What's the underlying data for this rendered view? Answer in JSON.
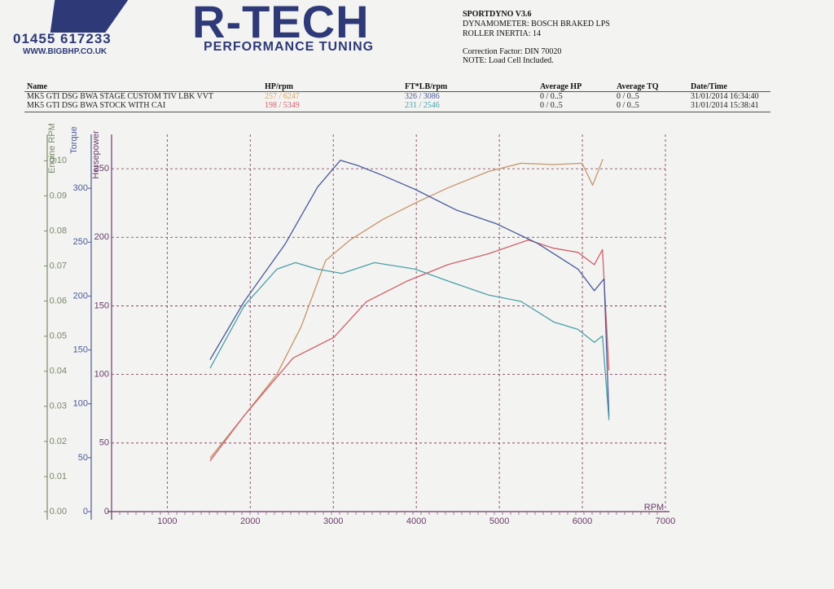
{
  "header": {
    "phone": "01455 617233",
    "website": "WWW.BIGBHP.CO.UK",
    "brand": "R-TECH",
    "tagline": "PERFORMANCE TUNING"
  },
  "info": [
    "SPORTDYNO V3.6",
    "DYNAMOMETER: BOSCH BRAKED LPS",
    "ROLLER INERTIA: 14",
    "Correction Factor: DIN 70020",
    "NOTE: Load Cell Included."
  ],
  "table": {
    "columns": [
      "Name",
      "HP/rpm",
      "FT*LB/rpm",
      "Average HP",
      "Average TQ",
      "Date/Time"
    ],
    "rows": [
      [
        "MK5 GTI DSG BWA STAGE CUSTOM TIV LBK VVT",
        "257 / 6247",
        "326 / 3086",
        "0 / 0..5",
        "0 / 0..5",
        "31/01/2014 16:34:40"
      ],
      [
        "MK5 GTI DSG BWA STOCK WITH CAI",
        "198 / 5349",
        "231 / 2546",
        "0 / 0..5",
        "0 / 0..5",
        "31/01/2014 15:38:41"
      ]
    ]
  },
  "chart_data": {
    "type": "line",
    "xlabel": "RPM",
    "ylabel": "Horsepower",
    "y2label": "Torque",
    "y3label": "Engine RPM",
    "xlim": [
      330,
      7000
    ],
    "xticks": [
      1000,
      2000,
      3000,
      4000,
      5000,
      6000,
      7000
    ],
    "ylim": [
      0,
      275
    ],
    "yticks": [
      0,
      50,
      100,
      150,
      200,
      250
    ],
    "y2lim": [
      0,
      350
    ],
    "y2ticks": [
      0,
      50,
      100,
      150,
      200,
      250,
      300
    ],
    "y3lim": [
      0,
      0.1075
    ],
    "y3ticks": [
      {
        "value": 0,
        "label": "0.00"
      },
      {
        "value": 0.01,
        "label": "0.01"
      },
      {
        "value": 0.02,
        "label": "0.02"
      },
      {
        "value": 0.03,
        "label": "0.03"
      },
      {
        "value": 0.04,
        "label": "0.04"
      },
      {
        "value": 0.05,
        "label": "0.05"
      },
      {
        "value": 0.06,
        "label": "0.06"
      },
      {
        "value": 0.07,
        "label": "0.07"
      },
      {
        "value": 0.08,
        "label": "0.08"
      },
      {
        "value": 0.09,
        "label": "0.09"
      },
      {
        "value": 0.1,
        "label": "0.10"
      }
    ],
    "grid": true,
    "series": [
      {
        "color": "#c8956a",
        "axis": "y",
        "x": [
          1516,
          1928,
          2320,
          2614,
          2908,
          3202,
          3595,
          3987,
          4379,
          4869,
          5261,
          5654,
          5997,
          6124,
          6247
        ],
        "values": [
          39,
          70,
          100,
          135,
          183,
          198,
          213,
          225,
          236,
          248,
          254,
          253,
          254,
          238,
          257
        ]
      },
      {
        "color": "#d0606a",
        "axis": "y",
        "x": [
          1516,
          1928,
          2516,
          3006,
          3398,
          3888,
          4379,
          4869,
          5349,
          5654,
          5948,
          6144,
          6242,
          6320
        ],
        "values": [
          37,
          70,
          112,
          127,
          153,
          168,
          180,
          188,
          198,
          192,
          189,
          180,
          191,
          103
        ]
      },
      {
        "color": "#4a5a9a",
        "axis": "y2",
        "x": [
          1516,
          1928,
          2418,
          2810,
          3086,
          3300,
          3595,
          3987,
          4477,
          4967,
          5457,
          5948,
          6144,
          6261,
          6320
        ],
        "values": [
          141,
          195,
          248,
          301,
          326,
          321,
          312,
          299,
          280,
          267,
          249,
          225,
          205,
          216,
          88
        ]
      },
      {
        "color": "#4aa0a8",
        "axis": "y2",
        "x": [
          1516,
          1928,
          2320,
          2546,
          2810,
          3104,
          3496,
          3987,
          4379,
          4869,
          5261,
          5654,
          5948,
          6144,
          6242,
          6320
        ],
        "values": [
          133,
          191,
          225,
          231,
          225,
          221,
          231,
          225,
          214,
          201,
          195,
          176,
          169,
          157,
          163,
          85
        ]
      }
    ]
  }
}
